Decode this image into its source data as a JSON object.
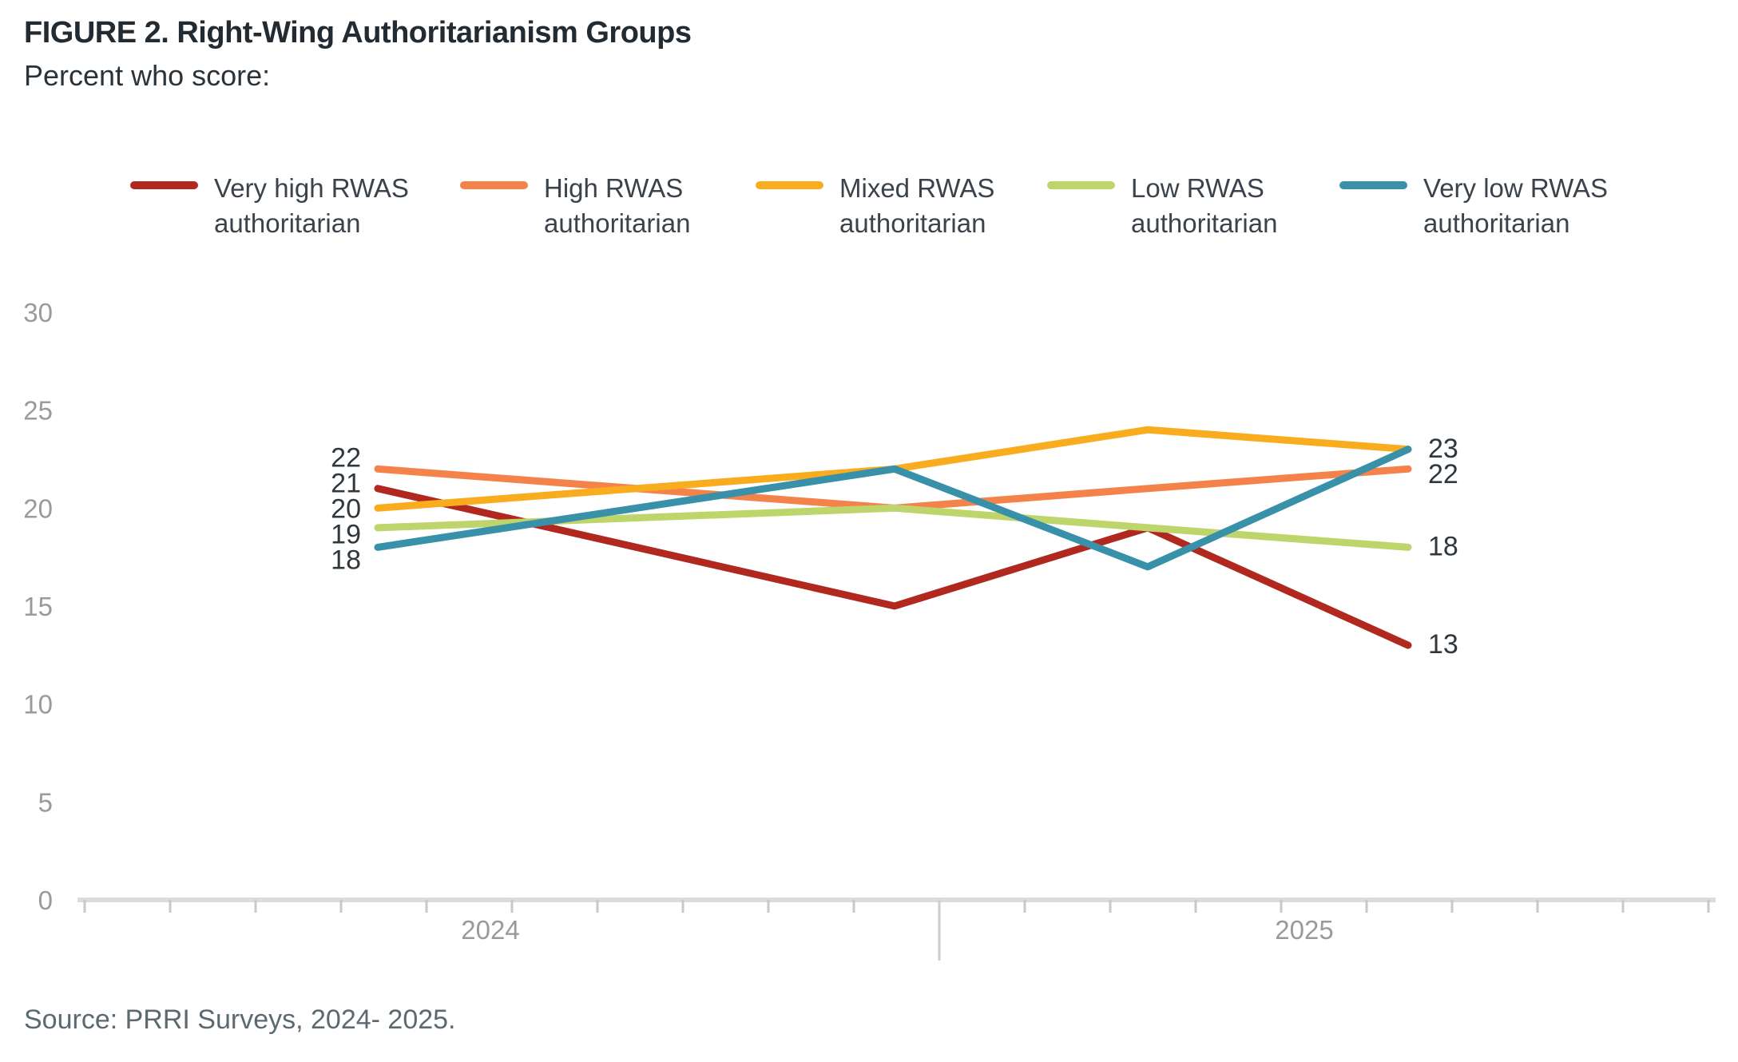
{
  "header": {
    "title": "FIGURE 2. Right-Wing Authoritarianism Groups",
    "subtitle": "Percent who score:"
  },
  "source": "Source: PRRI Surveys, 2024- 2025.",
  "chart_data": {
    "type": "line",
    "title": "FIGURE 2. Right-Wing Authoritarianism Groups",
    "subtitle": "Percent who score:",
    "legend_position": "top",
    "grid": "off",
    "x_axis": {
      "labels": [
        "2024",
        "2025"
      ]
    },
    "y_axis": {
      "ticks": [
        0,
        5,
        10,
        15,
        20,
        25,
        30
      ],
      "range": [
        0,
        30
      ]
    },
    "series": [
      {
        "name": "Very high RWAS authoritarian",
        "label_lines": [
          "Very high RWAS",
          "authoritarian"
        ],
        "color": "#B1281F",
        "values": [
          21,
          15,
          19,
          13
        ]
      },
      {
        "name": "High RWAS authoritarian",
        "label_lines": [
          "High RWAS",
          "authoritarian"
        ],
        "color": "#F3834A",
        "values": [
          22,
          20,
          21,
          22
        ]
      },
      {
        "name": "Mixed RWAS authoritarian",
        "label_lines": [
          "Mixed RWAS",
          "authoritarian"
        ],
        "color": "#F9AC1E",
        "values": [
          20,
          22,
          24,
          23
        ]
      },
      {
        "name": "Low RWAS authoritarian",
        "label_lines": [
          "Low RWAS",
          "authoritarian"
        ],
        "color": "#BED56B",
        "values": [
          19,
          20,
          19,
          18
        ]
      },
      {
        "name": "Very low RWAS authoritarian",
        "label_lines": [
          "Very low RWAS",
          "authoritarian"
        ],
        "color": "#3890A9",
        "values": [
          18,
          22,
          17,
          23
        ]
      }
    ],
    "point_labels": {
      "left": [
        {
          "text": "22",
          "value": 22
        },
        {
          "text": "21",
          "value": 21
        },
        {
          "text": "20",
          "value": 20
        },
        {
          "text": "19",
          "value": 19
        },
        {
          "text": "18",
          "value": 18
        }
      ],
      "right": [
        {
          "text": "23",
          "value": 23
        },
        {
          "text": "22",
          "value": 22
        },
        {
          "text": "18",
          "value": 18
        },
        {
          "text": "13",
          "value": 13
        }
      ]
    }
  }
}
